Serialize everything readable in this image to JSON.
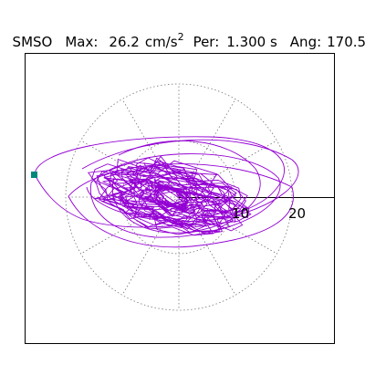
{
  "header": {
    "station": "SMSO",
    "max_label": "Max:",
    "max_value": "26.2",
    "max_unit": "cm/s",
    "max_exp": "2",
    "per_label": "Per:",
    "per_value": "1.300 s",
    "ang_label": "Ang:",
    "ang_value": "170.5"
  },
  "chart_data": {
    "type": "polar-trace",
    "rings": [
      10,
      20
    ],
    "ring_labels": [
      "10",
      "20"
    ],
    "spokes_deg": [
      0,
      30,
      60,
      90,
      120,
      150,
      180,
      210,
      240,
      270,
      300,
      330
    ],
    "axis": "positive-x",
    "trace_color": "#9400D3",
    "endpoint_color": "#00897B",
    "max_amplitude": 26.2,
    "units": "cm/s^2",
    "period_s": 1.3,
    "angle_deg": 170.5
  }
}
